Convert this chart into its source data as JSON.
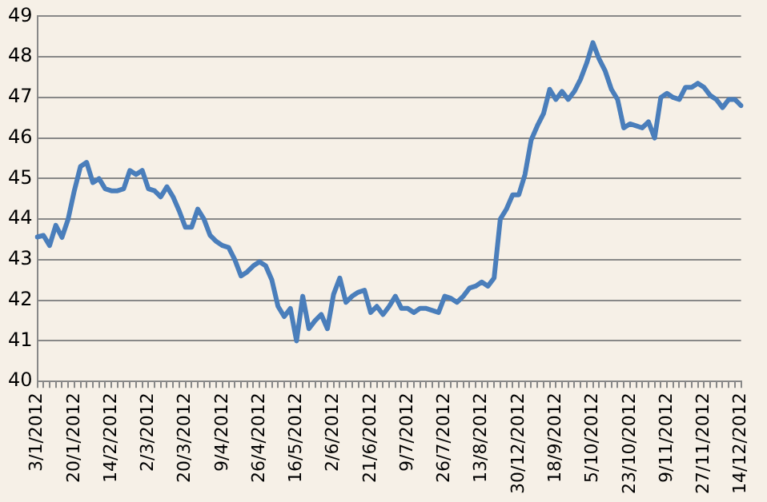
{
  "chart_data": {
    "type": "line",
    "categories": [
      "3/1/2012",
      null,
      null,
      null,
      null,
      null,
      "20/1/2012",
      null,
      null,
      null,
      null,
      null,
      "14/2/2012",
      null,
      null,
      null,
      null,
      null,
      "2/3/2012",
      null,
      null,
      null,
      null,
      null,
      "20/3/2012",
      null,
      null,
      null,
      null,
      null,
      "9/4/2012",
      null,
      null,
      null,
      null,
      null,
      "26/4/2012",
      null,
      null,
      null,
      null,
      null,
      "16/5/2012",
      null,
      null,
      null,
      null,
      null,
      "2/6/2012",
      null,
      null,
      null,
      null,
      null,
      "21/6/2012",
      null,
      null,
      null,
      null,
      null,
      "9/7/2012",
      null,
      null,
      null,
      null,
      null,
      "26/7/2012",
      null,
      null,
      null,
      null,
      null,
      "13/8/2012",
      null,
      null,
      null,
      null,
      null,
      "30/12/2012",
      null,
      null,
      null,
      null,
      null,
      "18/9/2012",
      null,
      null,
      null,
      null,
      null,
      "5/10/2012",
      null,
      null,
      null,
      null,
      null,
      "23/10/2012",
      null,
      null,
      null,
      null,
      null,
      "9/11/2012",
      null,
      null,
      null,
      null,
      null,
      "27/11/2012",
      null,
      null,
      null,
      null,
      null,
      "14/12/2012"
    ],
    "series": [
      {
        "color": "#4a7ebb",
        "values": [
          43.56,
          43.6,
          43.35,
          43.85,
          43.55,
          44.0,
          44.7,
          45.3,
          45.4,
          44.9,
          45.0,
          44.75,
          44.7,
          44.7,
          44.75,
          45.2,
          45.1,
          45.2,
          44.75,
          44.7,
          44.55,
          44.8,
          44.55,
          44.2,
          43.8,
          43.8,
          44.25,
          44.0,
          43.6,
          43.45,
          43.35,
          43.3,
          43.0,
          42.6,
          42.7,
          42.85,
          42.95,
          42.85,
          42.5,
          41.85,
          41.6,
          41.8,
          41.0,
          42.1,
          41.3,
          41.5,
          41.65,
          41.3,
          42.15,
          42.55,
          41.95,
          42.1,
          42.2,
          42.25,
          41.7,
          41.85,
          41.65,
          41.85,
          42.1,
          41.8,
          41.8,
          41.7,
          41.8,
          41.8,
          41.75,
          41.7,
          42.1,
          42.05,
          41.95,
          42.1,
          42.3,
          42.35,
          42.45,
          42.35,
          42.55,
          44.0,
          44.25,
          44.6,
          44.6,
          45.1,
          45.95,
          46.3,
          46.6,
          47.2,
          46.95,
          47.15,
          46.95,
          47.15,
          47.45,
          47.85,
          48.35,
          47.95,
          47.65,
          47.2,
          46.95,
          46.25,
          46.35,
          46.3,
          46.25,
          46.4,
          46.0,
          47.0,
          47.1,
          47.0,
          46.95,
          47.25,
          47.25,
          47.35,
          47.25,
          47.05,
          46.95,
          46.75,
          46.95,
          46.95,
          46.8
        ]
      }
    ],
    "ylim": [
      40,
      49
    ],
    "yticks": [
      40,
      41,
      42,
      43,
      44,
      45,
      46,
      47,
      48,
      49
    ],
    "grid": "y",
    "legend": false,
    "marker": "none",
    "line_style": "solid"
  }
}
